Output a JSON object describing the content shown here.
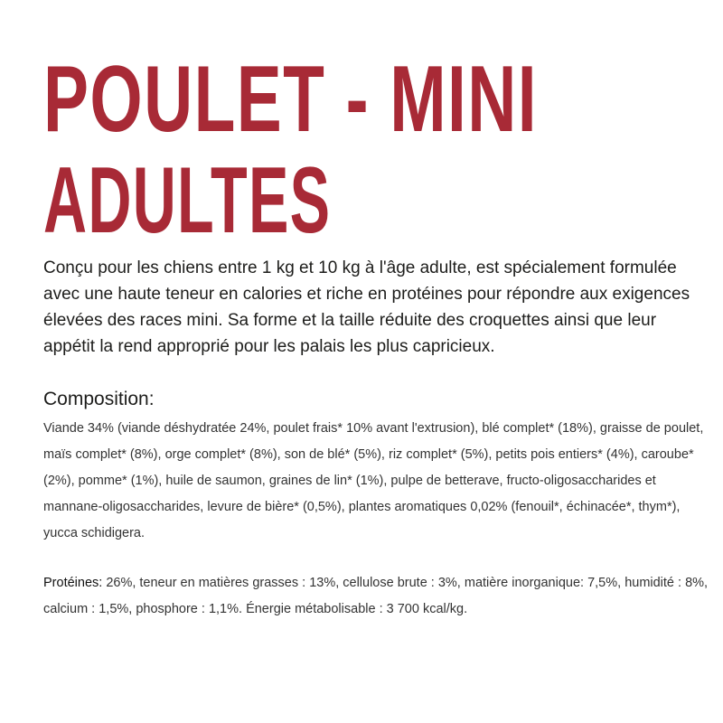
{
  "title": {
    "line1": "POULET - MINI",
    "line2": "ADULTES",
    "color": "#a82a36"
  },
  "description": "Conçu pour les chiens entre 1 kg et 10 kg à l'âge adulte, est spécialement formulée avec une haute teneur en calories et riche en protéines pour répondre aux exigences élevées des races mini. Sa forme et la taille réduite des croquettes ainsi que leur appétit la rend approprié pour les palais les plus capricieux.",
  "composition": {
    "heading": "Composition:",
    "text": "Viande 34% (viande déshydratée 24%, poulet frais* 10% avant l'extrusion), blé complet* (18%), graisse de poulet, maïs complet* (8%), orge complet* (8%), son de blé* (5%), riz complet* (5%), petits pois entiers* (4%), caroube* (2%), pomme* (1%), huile de saumon, graines de lin* (1%), pulpe de betterave, fructo-oligosaccharides et mannane-oligosaccharides, levure de bière* (0,5%), plantes aromatiques 0,02% (fenouil*, échinacée*, thym*), yucca schidigera."
  },
  "nutrients": {
    "label": "Protéines:",
    "text": " 26%, teneur en matières grasses : 13%, cellulose brute : 3%, matière inorganique: 7,5%, humidité : 8%, calcium : 1,5%, phosphore : 1,1%. Énergie métabolisable : 3 700 kcal/kg."
  }
}
